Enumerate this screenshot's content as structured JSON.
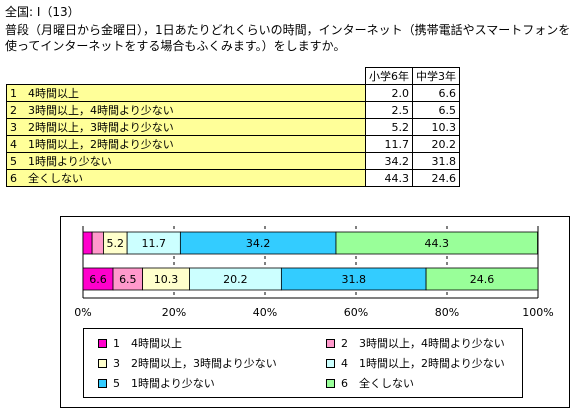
{
  "header": {
    "title": "全国: I（13）",
    "question": "普段（月曜日から金曜日），1日あたりどれくらいの時間，インターネット（携帯電話やスマートフォンを使ってインターネットをする場合もふくみます。）をしますか。"
  },
  "table": {
    "columns": [
      "小学6年",
      "中学3年"
    ],
    "rows": [
      {
        "label": "1　4時間以上",
        "elem": "2.0",
        "middle": "6.6"
      },
      {
        "label": "2　3時間以上，4時間より少ない",
        "elem": "2.5",
        "middle": "6.5"
      },
      {
        "label": "3　2時間以上，3時間より少ない",
        "elem": "5.2",
        "middle": "10.3"
      },
      {
        "label": "4　1時間以上，2時間より少ない",
        "elem": "11.7",
        "middle": "20.2"
      },
      {
        "label": "5　1時間より少ない",
        "elem": "34.2",
        "middle": "31.8"
      },
      {
        "label": "6　全くしない",
        "elem": "44.3",
        "middle": "24.6"
      }
    ]
  },
  "chart_data": {
    "type": "bar",
    "orientation": "horizontal",
    "stacked": true,
    "categories": [
      "小学6年",
      "中学3年"
    ],
    "series": [
      {
        "name": "1　4時間以上",
        "values": [
          2.0,
          6.6
        ],
        "color": "#ff00cc",
        "label_values": [
          "",
          "6.6"
        ]
      },
      {
        "name": "2　3時間以上，4時間より少ない",
        "values": [
          2.5,
          6.5
        ],
        "color": "#ff99cc",
        "label_values": [
          "",
          "6.5"
        ]
      },
      {
        "name": "3　2時間以上，3時間より少ない",
        "values": [
          5.2,
          10.3
        ],
        "color": "#ffffcc",
        "label_values": [
          "5.2",
          "10.3"
        ]
      },
      {
        "name": "4　1時間以上，2時間より少ない",
        "values": [
          11.7,
          20.2
        ],
        "color": "#ccffff",
        "label_values": [
          "11.7",
          "20.2"
        ]
      },
      {
        "name": "5　1時間より少ない",
        "values": [
          34.2,
          31.8
        ],
        "color": "#33ccff",
        "label_values": [
          "34.2",
          "31.8"
        ]
      },
      {
        "name": "6　全くしない",
        "values": [
          44.3,
          24.6
        ],
        "color": "#99ff99",
        "label_values": [
          "44.3",
          "24.6"
        ]
      }
    ],
    "xlim": [
      0,
      100
    ],
    "x_ticks": [
      "0%",
      "20%",
      "40%",
      "60%",
      "80%",
      "100%"
    ],
    "grid": true,
    "legend_placement": "bottom"
  }
}
